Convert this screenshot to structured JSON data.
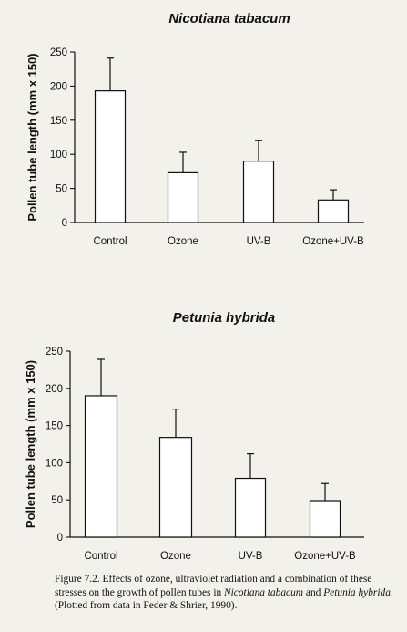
{
  "chart_data": [
    {
      "type": "bar",
      "title": "Nicotiana tabacum",
      "xlabel": "",
      "ylabel": "Pollen tube length (mm x 150)",
      "categories": [
        "Control",
        "Ozone",
        "UV-B",
        "Ozone+UV-B"
      ],
      "values": [
        193,
        73,
        90,
        33
      ],
      "error_upper": [
        241,
        103,
        120,
        48
      ],
      "ylim": [
        0,
        250
      ],
      "yticks": [
        0,
        50,
        100,
        150,
        200,
        250
      ],
      "grid": false,
      "legend": "none"
    },
    {
      "type": "bar",
      "title": "Petunia hybrida",
      "xlabel": "",
      "ylabel": "Pollen tube length (mm x 150)",
      "categories": [
        "Control",
        "Ozone",
        "UV-B",
        "Ozone+UV-B"
      ],
      "values": [
        190,
        134,
        79,
        49
      ],
      "error_upper": [
        239,
        172,
        112,
        72
      ],
      "ylim": [
        0,
        250
      ],
      "yticks": [
        0,
        50,
        100,
        150,
        200,
        250
      ],
      "grid": false,
      "legend": "none"
    }
  ],
  "caption": {
    "prefix": "Figure 7.2. Effects of ozone, ultraviolet radiation and a combination of these stresses on the growth of pollen tubes in ",
    "species1": "Nicotiana tabacum",
    "middle": " and ",
    "species2": "Petunia hybrida",
    "suffix": ". (Plotted from data in Feder & Shrier, 1990)."
  },
  "colors": {
    "background": "#f3f1ec",
    "ink": "#111111",
    "bar_fill": "#ffffff"
  }
}
